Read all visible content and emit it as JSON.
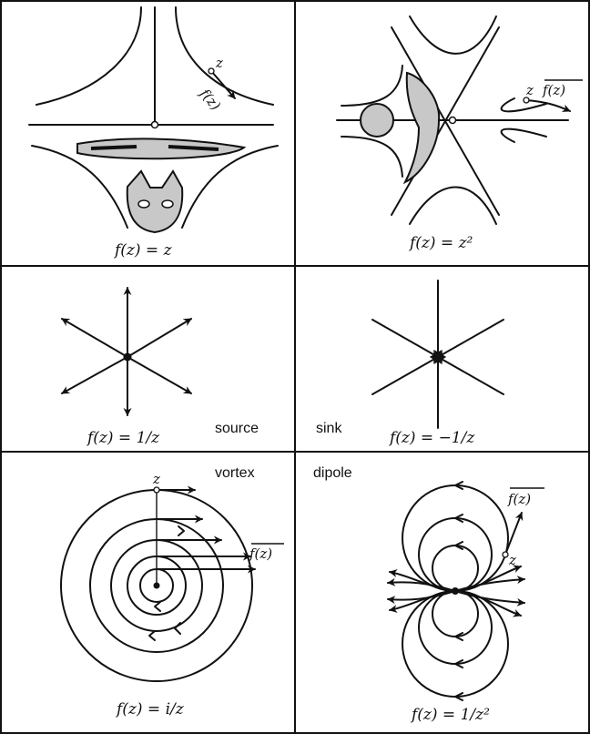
{
  "panels": {
    "identity": {
      "caption": "f(z) = z",
      "point_label": "z",
      "vector_label": "f(z)"
    },
    "square": {
      "caption": "f(z) = z²",
      "point_label": "z",
      "vector_label": "f(z)"
    },
    "source": {
      "caption": "f(z) = 1/z",
      "word": "source"
    },
    "sink": {
      "caption": "f(z) = −1/z",
      "word": "sink"
    },
    "vortex": {
      "caption": "f(z) = i/z",
      "word": "vortex",
      "point_label": "z",
      "vector_label": "f(z)"
    },
    "dipole": {
      "caption": "f(z) = 1/z²",
      "word": "dipole",
      "point_label": "z",
      "vector_label": "f(z)"
    }
  },
  "colors": {
    "stroke": "#111111",
    "shade": "#c8c8c8",
    "background": "#ffffff"
  }
}
